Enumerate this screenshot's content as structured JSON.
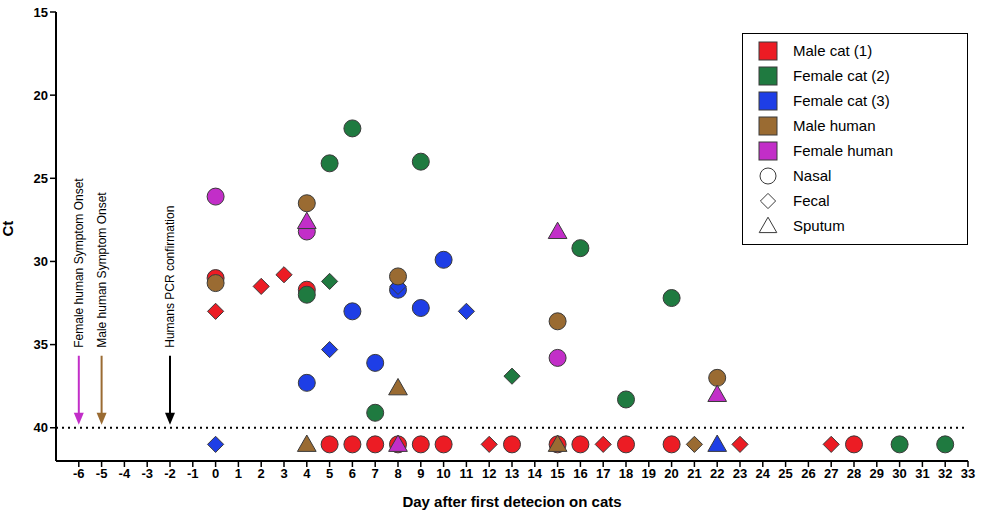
{
  "chart_data": {
    "type": "scatter",
    "x_label": "Day after first detecion on cats",
    "y_label": "Ct",
    "xlim": [
      -7,
      33
    ],
    "xticks": [
      -6,
      -5,
      -4,
      -3,
      -2,
      -1,
      0,
      1,
      2,
      3,
      4,
      5,
      6,
      7,
      8,
      9,
      10,
      11,
      12,
      13,
      14,
      15,
      16,
      17,
      18,
      19,
      20,
      21,
      22,
      23,
      24,
      25,
      26,
      27,
      28,
      29,
      30,
      31,
      32,
      33
    ],
    "ylim": [
      15,
      42
    ],
    "yticks": [
      15,
      20,
      25,
      30,
      35,
      40
    ],
    "log": "y_reversed_false",
    "threshold": 40,
    "legend": "upper right",
    "specimens": [
      {
        "name": "Nasal",
        "marker": "circle"
      },
      {
        "name": "Fecal",
        "marker": "diamond"
      },
      {
        "name": "Sputum",
        "marker": "triangle"
      }
    ],
    "annotations": [
      {
        "text": "Female human Symptom Onset",
        "x": -6,
        "color": "#c22ec8"
      },
      {
        "text": "Male human Symptom Onset",
        "x": -5,
        "color": "#9a6b32"
      },
      {
        "text": "Humans PCR confirmation",
        "x": -2,
        "color": "#000000"
      }
    ],
    "series": [
      {
        "name": "Male cat (1)",
        "color": "#ec1c24",
        "points": [
          {
            "x": 0,
            "y": 31.0,
            "specimen": "Nasal"
          },
          {
            "x": 4,
            "y": 31.7,
            "specimen": "Nasal"
          },
          {
            "x": 5,
            "y": 41,
            "specimen": "Nasal"
          },
          {
            "x": 6,
            "y": 41,
            "specimen": "Nasal"
          },
          {
            "x": 7,
            "y": 41,
            "specimen": "Nasal"
          },
          {
            "x": 8,
            "y": 41,
            "specimen": "Nasal"
          },
          {
            "x": 9,
            "y": 41,
            "specimen": "Nasal"
          },
          {
            "x": 10,
            "y": 41,
            "specimen": "Nasal"
          },
          {
            "x": 13,
            "y": 41,
            "specimen": "Nasal"
          },
          {
            "x": 15,
            "y": 41,
            "specimen": "Nasal"
          },
          {
            "x": 16,
            "y": 41,
            "specimen": "Nasal"
          },
          {
            "x": 18,
            "y": 41,
            "specimen": "Nasal"
          },
          {
            "x": 20,
            "y": 41,
            "specimen": "Nasal"
          },
          {
            "x": 28,
            "y": 41,
            "specimen": "Nasal"
          },
          {
            "x": 0,
            "y": 33.0,
            "specimen": "Fecal"
          },
          {
            "x": 2,
            "y": 31.5,
            "specimen": "Fecal"
          },
          {
            "x": 3,
            "y": 30.8,
            "specimen": "Fecal"
          },
          {
            "x": 12,
            "y": 41,
            "specimen": "Fecal"
          },
          {
            "x": 17,
            "y": 41,
            "specimen": "Fecal"
          },
          {
            "x": 23,
            "y": 41,
            "specimen": "Fecal"
          },
          {
            "x": 27,
            "y": 41,
            "specimen": "Fecal"
          }
        ]
      },
      {
        "name": "Female cat (2)",
        "color": "#1f7a40",
        "points": [
          {
            "x": 4,
            "y": 32.0,
            "specimen": "Nasal"
          },
          {
            "x": 5,
            "y": 24.1,
            "specimen": "Nasal"
          },
          {
            "x": 6,
            "y": 22.0,
            "specimen": "Nasal"
          },
          {
            "x": 7,
            "y": 39.1,
            "specimen": "Nasal"
          },
          {
            "x": 9,
            "y": 24.0,
            "specimen": "Nasal"
          },
          {
            "x": 16,
            "y": 29.2,
            "specimen": "Nasal"
          },
          {
            "x": 18,
            "y": 38.3,
            "specimen": "Nasal"
          },
          {
            "x": 20,
            "y": 32.2,
            "specimen": "Nasal"
          },
          {
            "x": 30,
            "y": 41,
            "specimen": "Nasal"
          },
          {
            "x": 32,
            "y": 41,
            "specimen": "Nasal"
          },
          {
            "x": 5,
            "y": 31.2,
            "specimen": "Fecal"
          },
          {
            "x": 13,
            "y": 36.9,
            "specimen": "Fecal"
          }
        ]
      },
      {
        "name": "Female cat (3)",
        "color": "#1e3ee6",
        "points": [
          {
            "x": 4,
            "y": 37.3,
            "specimen": "Nasal"
          },
          {
            "x": 6,
            "y": 33.0,
            "specimen": "Nasal"
          },
          {
            "x": 7,
            "y": 36.1,
            "specimen": "Nasal"
          },
          {
            "x": 8,
            "y": 31.7,
            "specimen": "Nasal"
          },
          {
            "x": 9,
            "y": 32.8,
            "specimen": "Nasal"
          },
          {
            "x": 10,
            "y": 29.9,
            "specimen": "Nasal"
          },
          {
            "x": 0,
            "y": 41,
            "specimen": "Fecal"
          },
          {
            "x": 5,
            "y": 35.3,
            "specimen": "Fecal"
          },
          {
            "x": 8,
            "y": 31.5,
            "specimen": "Fecal"
          },
          {
            "x": 11,
            "y": 33.0,
            "specimen": "Fecal"
          },
          {
            "x": 22,
            "y": 41,
            "specimen": "Sputum"
          }
        ]
      },
      {
        "name": "Male human",
        "color": "#9a6b32",
        "points": [
          {
            "x": 0,
            "y": 31.3,
            "specimen": "Nasal"
          },
          {
            "x": 4,
            "y": 26.5,
            "specimen": "Nasal"
          },
          {
            "x": 8,
            "y": 30.9,
            "specimen": "Nasal"
          },
          {
            "x": 15,
            "y": 33.6,
            "specimen": "Nasal"
          },
          {
            "x": 22,
            "y": 37.0,
            "specimen": "Nasal"
          },
          {
            "x": 21,
            "y": 41,
            "specimen": "Fecal"
          },
          {
            "x": 4,
            "y": 41,
            "specimen": "Sputum"
          },
          {
            "x": 8,
            "y": 37.6,
            "specimen": "Sputum"
          },
          {
            "x": 15,
            "y": 41,
            "specimen": "Sputum"
          }
        ]
      },
      {
        "name": "Female human",
        "color": "#c22ec8",
        "points": [
          {
            "x": 0,
            "y": 26.1,
            "specimen": "Nasal"
          },
          {
            "x": 4,
            "y": 28.2,
            "specimen": "Nasal"
          },
          {
            "x": 15,
            "y": 35.8,
            "specimen": "Nasal"
          },
          {
            "x": 4,
            "y": 27.6,
            "specimen": "Sputum"
          },
          {
            "x": 8,
            "y": 41,
            "specimen": "Sputum"
          },
          {
            "x": 15,
            "y": 28.2,
            "specimen": "Sputum"
          },
          {
            "x": 22,
            "y": 38.0,
            "specimen": "Sputum"
          }
        ]
      }
    ]
  }
}
